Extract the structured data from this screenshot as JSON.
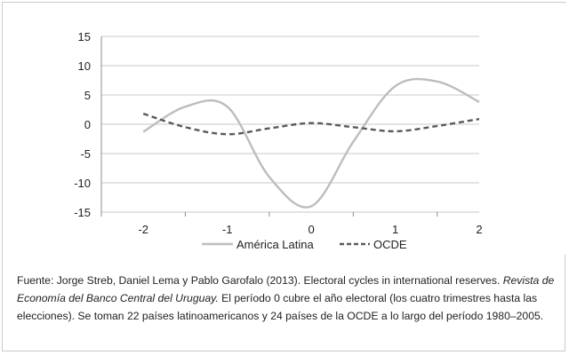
{
  "colors": {
    "america_latina": "#bdbdbd",
    "ocde": "#5a5a5a",
    "axis": "#8c8c8c",
    "grid": "#c9c9c9",
    "text": "#222222"
  },
  "chart_data": {
    "type": "line",
    "x": [
      -2,
      -1.5,
      -1,
      -0.5,
      0,
      0.5,
      1,
      1.5,
      2
    ],
    "xticks": [
      "-2",
      "-1",
      "0",
      "1",
      "2"
    ],
    "yticks": [
      "15",
      "10",
      "5",
      "0",
      "-5",
      "-10",
      "-15"
    ],
    "ylim": [
      -15,
      15
    ],
    "grid": true,
    "legend_position": "bottom",
    "series": [
      {
        "name": "América Latina",
        "values": [
          -1.3,
          3.0,
          3.0,
          -9.0,
          -14.0,
          -3.0,
          6.5,
          7.3,
          3.8
        ]
      },
      {
        "name": "OCDE",
        "values": [
          1.8,
          -0.5,
          -1.7,
          -0.7,
          0.2,
          -0.5,
          -1.2,
          -0.3,
          0.9
        ]
      }
    ]
  },
  "caption": {
    "part1": "Fuente: Jorge Streb, Daniel Lema y Pablo Garofalo (2013). Electoral cycles in international reserves. ",
    "journal": "Revista de Economía del Banco Central del Uruguay.",
    "part2": " El período 0 cubre el año electoral (los cuatro trimestres hasta las elecciones). Se toman 22 países latinoamericanos y 24 países de la OCDE a lo largo del período 1980–2005."
  }
}
